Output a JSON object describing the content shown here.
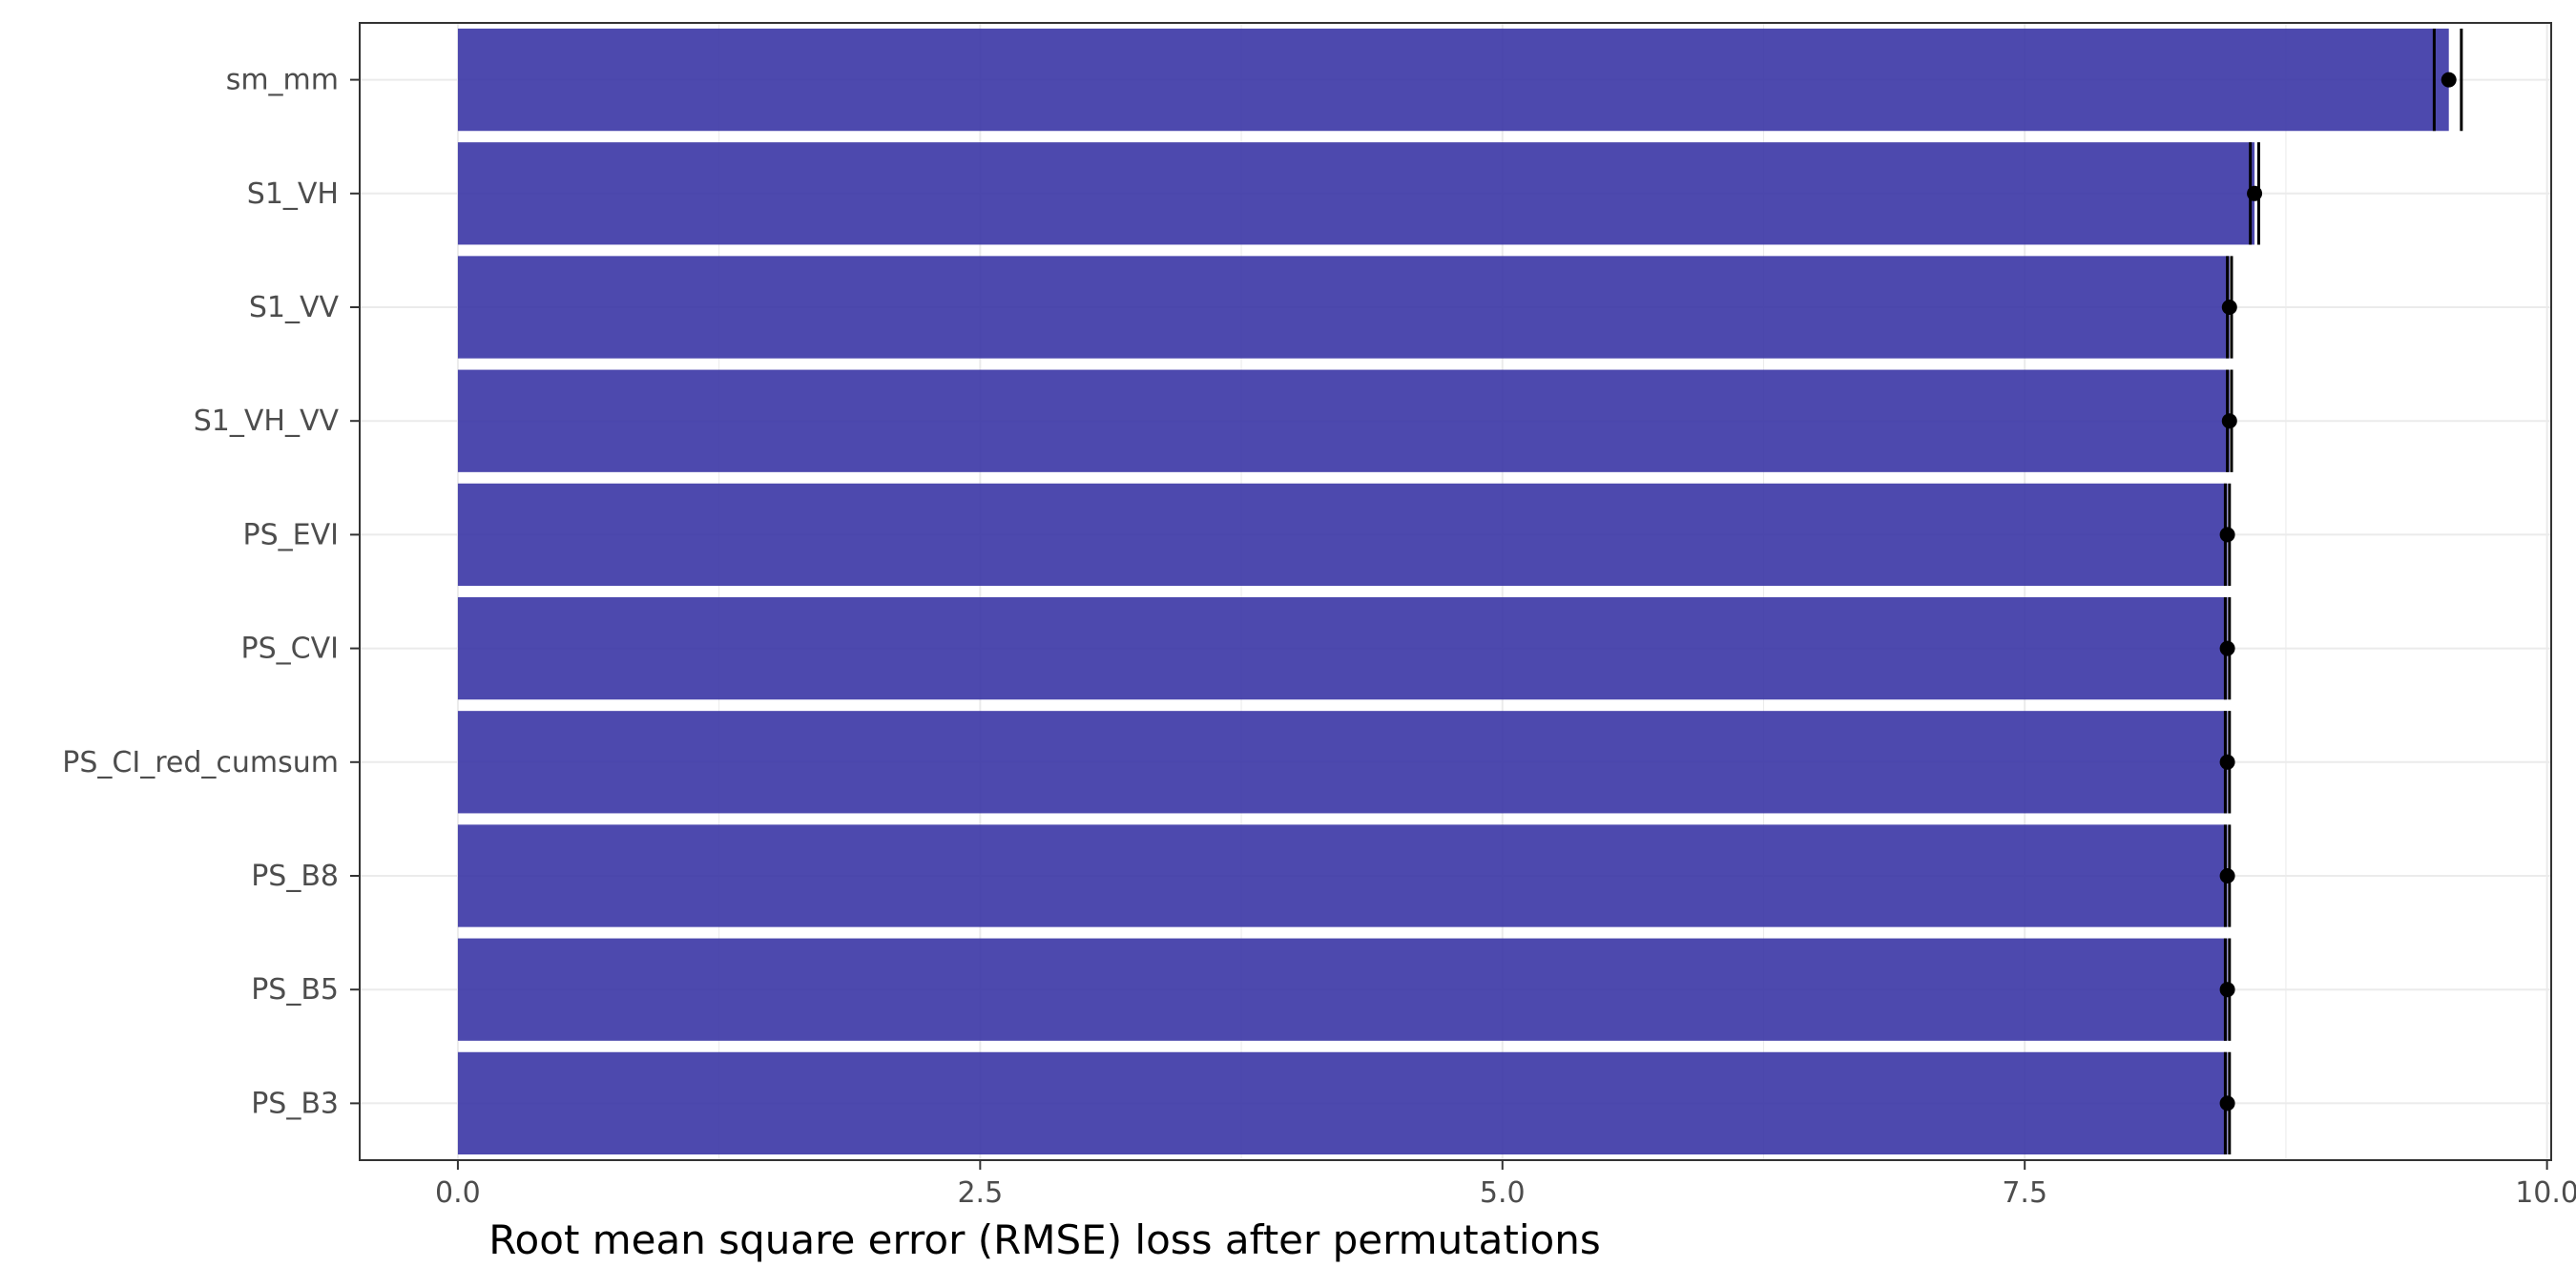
{
  "chart_data": {
    "type": "bar",
    "orientation": "horizontal",
    "categories": [
      "sm_mm",
      "S1_VH",
      "S1_VV",
      "S1_VH_VV",
      "PS_EVI",
      "PS_CVI",
      "PS_CI_red_cumsum",
      "PS_B8",
      "PS_B5",
      "PS_B3"
    ],
    "values": [
      9.53,
      8.6,
      8.48,
      8.48,
      8.47,
      8.47,
      8.47,
      8.47,
      8.47,
      8.47
    ],
    "error_low": [
      9.46,
      8.58,
      8.47,
      8.47,
      8.46,
      8.46,
      8.46,
      8.46,
      8.46,
      8.46
    ],
    "error_high": [
      9.59,
      8.62,
      8.49,
      8.49,
      8.48,
      8.48,
      8.48,
      8.48,
      8.48,
      8.48
    ],
    "title": "",
    "xlabel": "Root mean square error (RMSE) loss after permutations",
    "ylabel": "",
    "xlim": [
      -0.47,
      10.02
    ],
    "xticks": [
      0.0,
      2.5,
      5.0,
      7.5,
      10.0
    ],
    "xtick_labels": [
      "0.0",
      "2.5",
      "5.0",
      "7.5",
      "10.0"
    ],
    "grid": true,
    "legend": "none",
    "colors": {
      "bar": "#3a35a5",
      "bar_opacity": 0.9,
      "marker": "#000000",
      "grid": "#ebebeb",
      "panel_border": "#333333",
      "background": "#ffffff"
    }
  }
}
